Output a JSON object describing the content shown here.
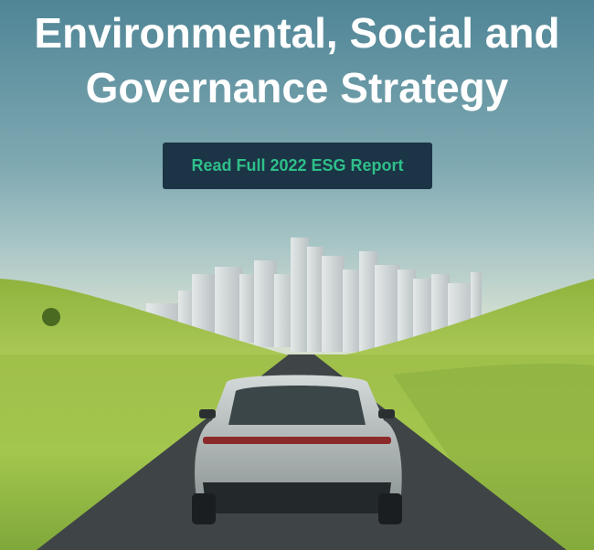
{
  "hero": {
    "title": "Environmental, Social and Governance Strategy",
    "cta_label": "Read Full 2022 ESG Report",
    "image": "electric-car-on-road-toward-city"
  },
  "colors": {
    "button_bg": "#1b3446",
    "button_text": "#2fbf8a",
    "title_text": "#ffffff"
  }
}
